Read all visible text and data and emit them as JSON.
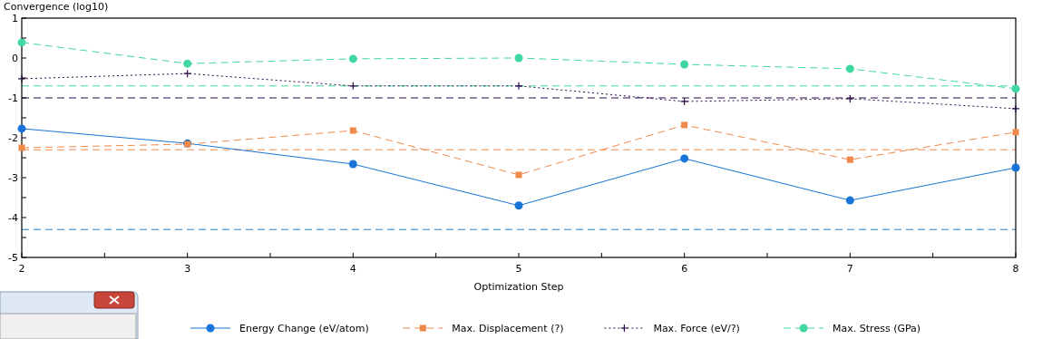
{
  "chart_data": {
    "type": "line",
    "xlabel": "Optimization Step",
    "ylabel": "Convergence (log10)",
    "x": [
      2,
      3,
      4,
      5,
      6,
      7,
      8
    ],
    "xlim": [
      2,
      8
    ],
    "xticks": [
      2,
      {
        "value": 2.5,
        "label": null
      },
      3,
      {
        "value": 3.5,
        "label": null
      },
      4,
      {
        "value": 4.5,
        "label": null
      },
      5,
      {
        "value": 5.5,
        "label": null
      },
      6,
      {
        "value": 6.5,
        "label": null
      },
      7,
      {
        "value": 7.5,
        "label": null
      },
      8
    ],
    "ylim": [
      -5,
      1
    ],
    "yticks": [
      {
        "value": -5,
        "label": "-5"
      },
      {
        "value": -4.5,
        "label": null
      },
      {
        "value": -4,
        "label": "-4"
      },
      {
        "value": -3.5,
        "label": null
      },
      {
        "value": -3,
        "label": "-3"
      },
      {
        "value": -2.5,
        "label": null
      },
      {
        "value": -2,
        "label": "-2"
      },
      {
        "value": -1.5,
        "label": null
      },
      {
        "value": -1,
        "label": "-1"
      },
      {
        "value": -0.5,
        "label": null
      },
      0,
      {
        "value": 0.5,
        "label": null
      },
      1
    ],
    "series": [
      {
        "name": "Energy Change (eV/atom)",
        "color": "#1874d8",
        "marker": "circle",
        "line_style": "solid",
        "values": [
          -1.77,
          -2.14,
          -2.66,
          -3.7,
          -2.52,
          -3.57,
          -2.75
        ]
      },
      {
        "name": "Max. Displacement (?)",
        "color": "#f0884a",
        "marker": "square",
        "line_style": "dashed",
        "values": [
          -2.25,
          -2.16,
          -1.82,
          -2.93,
          -1.68,
          -2.55,
          -1.86
        ]
      },
      {
        "name": "Max. Force (eV/?)",
        "color": "#2a0a4a",
        "marker": "cross",
        "line_style": "dotted",
        "values": [
          -0.52,
          -0.39,
          -0.7,
          -0.7,
          -1.09,
          -1.02,
          -1.27
        ]
      },
      {
        "name": "Max. Stress (GPa)",
        "color": "#40d8a0",
        "marker": "circle",
        "line_style": "dashed",
        "values": [
          0.39,
          -0.14,
          -0.02,
          0,
          -0.16,
          -0.27,
          -0.77
        ]
      }
    ],
    "ref_lines": [
      {
        "axis": "y",
        "value": -0.7,
        "color": "#40d8a0",
        "line_style": "dashed"
      },
      {
        "axis": "y",
        "value": -1,
        "color": "#2a0a4a",
        "line_style": "dashed"
      },
      {
        "axis": "y",
        "value": -2.3,
        "color": "#f0884a",
        "line_style": "dashed"
      },
      {
        "axis": "y",
        "value": -4.3,
        "color": "#2080c0",
        "line_style": "dashed"
      }
    ],
    "grid": false,
    "legend": "bottom"
  }
}
